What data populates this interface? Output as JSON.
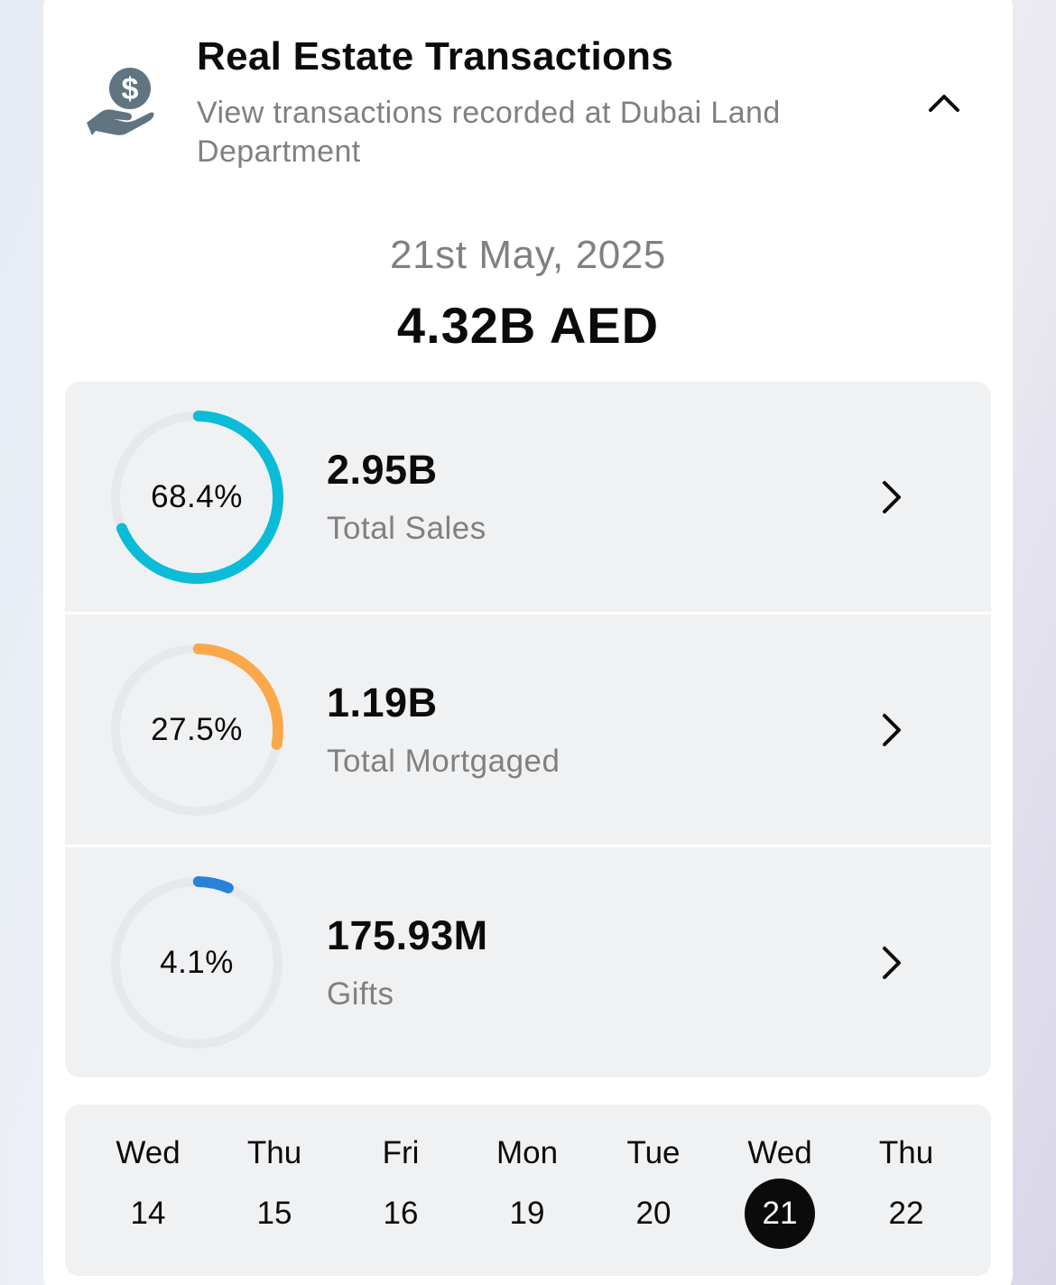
{
  "header": {
    "icon": "hand-dollar-icon",
    "title": "Real Estate Transactions",
    "subtitle": "View transactions recorded at Dubai Land Department",
    "collapse_icon": "chevron-up-icon"
  },
  "summary": {
    "date": "21st May, 2025",
    "total": "4.32B AED"
  },
  "stats": [
    {
      "percent_label": "68.4%",
      "fraction": 0.684,
      "color": "#0ABCD8",
      "value": "2.95B",
      "label": "Total Sales"
    },
    {
      "percent_label": "27.5%",
      "fraction": 0.275,
      "color": "#FBA84A",
      "value": "1.19B",
      "label": "Total Mortgaged"
    },
    {
      "percent_label": "4.1%",
      "fraction": 0.041,
      "color": "#2A82D8",
      "value": "175.93M",
      "label": "Gifts"
    }
  ],
  "days": [
    {
      "name": "Wed",
      "num": "14",
      "selected": false
    },
    {
      "name": "Thu",
      "num": "15",
      "selected": false
    },
    {
      "name": "Fri",
      "num": "16",
      "selected": false
    },
    {
      "name": "Mon",
      "num": "19",
      "selected": false
    },
    {
      "name": "Tue",
      "num": "20",
      "selected": false
    },
    {
      "name": "Wed",
      "num": "21",
      "selected": true
    },
    {
      "name": "Thu",
      "num": "22",
      "selected": false
    }
  ]
}
